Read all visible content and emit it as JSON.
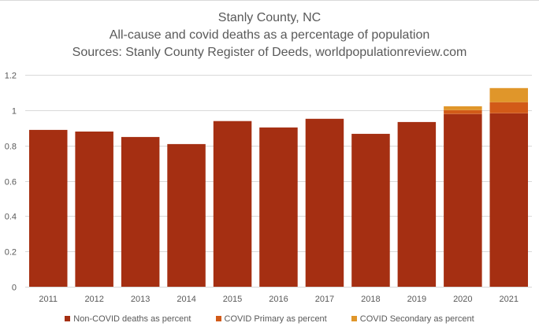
{
  "chart_data": {
    "type": "bar",
    "stacked": true,
    "title": "Stanly County, NC",
    "subtitle": "All-cause and covid deaths as a percentage of population",
    "source_line": "Sources: Stanly County Register of Deeds, worldpopulationreview.com",
    "xlabel": "",
    "ylabel": "",
    "ylim": [
      0,
      1.2
    ],
    "yticks": [
      0,
      0.2,
      0.4,
      0.6,
      0.8,
      1,
      1.2
    ],
    "ytick_labels": [
      "0",
      "0.2",
      "0.4",
      "0.6",
      "0.8",
      "1",
      "1.2"
    ],
    "grid": true,
    "legend_position": "bottom",
    "categories": [
      "2011",
      "2012",
      "2013",
      "2014",
      "2015",
      "2016",
      "2017",
      "2018",
      "2019",
      "2020",
      "2021"
    ],
    "series": [
      {
        "name": "Non-COVID deaths as percent",
        "color": "#A52F12",
        "values": [
          0.888,
          0.879,
          0.848,
          0.808,
          0.938,
          0.902,
          0.951,
          0.866,
          0.933,
          0.978,
          0.982
        ]
      },
      {
        "name": "COVID Primary as percent",
        "color": "#D25A18",
        "values": [
          0,
          0,
          0,
          0,
          0,
          0,
          0,
          0,
          0,
          0.022,
          0.063
        ]
      },
      {
        "name": "COVID Secondary as percent",
        "color": "#E0962A",
        "values": [
          0,
          0,
          0,
          0,
          0,
          0,
          0,
          0,
          0,
          0.022,
          0.08
        ]
      }
    ]
  }
}
